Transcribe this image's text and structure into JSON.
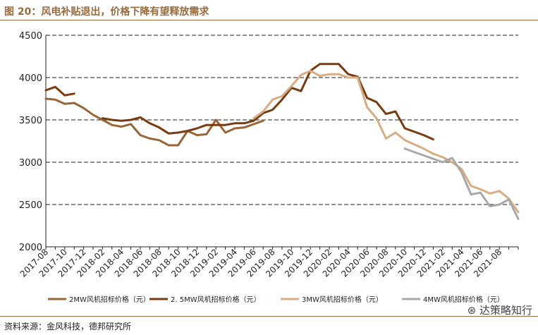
{
  "figure": {
    "title": "图 20：风电补贴退出，价格下降有望释放需求",
    "source": "资料来源：金风科技，德邦研究所",
    "watermark": "达策略知行"
  },
  "chart_data": {
    "type": "line",
    "title": "",
    "xlabel": "",
    "ylabel": "",
    "ylim": [
      2000,
      4500
    ],
    "yticks": [
      2000,
      2500,
      3000,
      3500,
      4000,
      4500
    ],
    "grid": "horizontal dashed",
    "legend_position": "bottom",
    "x_tick_labels": [
      "2017-08",
      "2017-10",
      "2017-12",
      "2018-02",
      "2018-04",
      "2018-06",
      "2018-08",
      "2018-10",
      "2018-12",
      "2019-02",
      "2019-04",
      "2019-06",
      "2019-08",
      "2019-10",
      "2019-12",
      "2020-02",
      "2020-04",
      "2020-06",
      "2020-08",
      "2020-10",
      "2020-12",
      "2021-02",
      "2021-04",
      "2021-06",
      "2021-08"
    ],
    "series": [
      {
        "name": "2MW风机招标价格（元）",
        "color": "#9a6537",
        "points": [
          [
            "2017-08",
            3750
          ],
          [
            "2017-09",
            3740
          ],
          [
            "2017-10",
            3690
          ],
          [
            "2017-11",
            3700
          ],
          [
            "2017-12",
            3640
          ],
          [
            "2018-01",
            3560
          ],
          [
            "2018-02",
            3500
          ],
          [
            "2018-03",
            3440
          ],
          [
            "2018-04",
            3420
          ],
          [
            "2018-05",
            3450
          ],
          [
            "2018-06",
            3320
          ],
          [
            "2018-07",
            3280
          ],
          [
            "2018-08",
            3260
          ],
          [
            "2018-09",
            3200
          ],
          [
            "2018-10",
            3200
          ],
          [
            "2018-11",
            3370
          ],
          [
            "2018-12",
            3320
          ],
          [
            "2019-01",
            3330
          ],
          [
            "2019-02",
            3500
          ],
          [
            "2019-03",
            3350
          ],
          [
            "2019-04",
            3400
          ],
          [
            "2019-05",
            3410
          ],
          [
            "2019-06",
            3450
          ],
          [
            "2019-07",
            3490
          ]
        ]
      },
      {
        "name": "2. 5MW风机招标价格（元）",
        "color": "#7a3b10",
        "points": [
          [
            "2017-08",
            3850
          ],
          [
            "2017-09",
            3890
          ],
          [
            "2017-10",
            3790
          ],
          [
            "2017-11",
            3810
          ],
          null,
          [
            "2018-02",
            3520
          ],
          [
            "2018-03",
            3500
          ],
          [
            "2018-04",
            3490
          ],
          [
            "2018-05",
            3500
          ],
          [
            "2018-06",
            3530
          ],
          [
            "2018-07",
            3460
          ],
          [
            "2018-08",
            3410
          ],
          [
            "2018-09",
            3340
          ],
          [
            "2018-10",
            3350
          ],
          [
            "2018-11",
            3370
          ],
          [
            "2018-12",
            3400
          ],
          [
            "2019-01",
            3440
          ],
          [
            "2019-02",
            3440
          ],
          [
            "2019-03",
            3440
          ],
          [
            "2019-04",
            3460
          ],
          [
            "2019-05",
            3460
          ],
          [
            "2019-06",
            3490
          ],
          [
            "2019-07",
            3580
          ],
          [
            "2019-08",
            3620
          ],
          [
            "2019-09",
            3740
          ],
          [
            "2019-10",
            3880
          ],
          [
            "2019-11",
            3840
          ],
          [
            "2019-12",
            4080
          ],
          [
            "2020-01",
            4160
          ],
          [
            "2020-02",
            4160
          ],
          [
            "2020-03",
            4160
          ],
          [
            "2020-04",
            4040
          ],
          [
            "2020-05",
            4010
          ],
          [
            "2020-06",
            3760
          ],
          [
            "2020-07",
            3710
          ],
          [
            "2020-08",
            3570
          ],
          [
            "2020-09",
            3600
          ],
          [
            "2020-10",
            3400
          ],
          [
            "2020-11",
            3360
          ],
          [
            "2020-12",
            3320
          ],
          [
            "2021-01",
            3270
          ]
        ]
      },
      {
        "name": "3MW风机招标价格（元）",
        "color": "#d9ad84",
        "points": [
          [
            "2019-06",
            3520
          ],
          [
            "2019-07",
            3600
          ],
          [
            "2019-08",
            3740
          ],
          [
            "2019-09",
            3780
          ],
          [
            "2019-10",
            3900
          ],
          [
            "2019-11",
            4030
          ],
          [
            "2019-12",
            4080
          ],
          [
            "2020-01",
            4020
          ],
          [
            "2020-02",
            4040
          ],
          [
            "2020-03",
            4040
          ],
          [
            "2020-04",
            4000
          ],
          [
            "2020-05",
            4000
          ],
          [
            "2020-06",
            3650
          ],
          [
            "2020-07",
            3520
          ],
          [
            "2020-08",
            3280
          ],
          [
            "2020-09",
            3350
          ],
          [
            "2020-10",
            3260
          ],
          [
            "2020-11",
            3210
          ],
          [
            "2020-12",
            3160
          ],
          [
            "2021-01",
            3100
          ],
          [
            "2021-02",
            3060
          ],
          [
            "2021-03",
            3000
          ],
          [
            "2021-04",
            2920
          ],
          [
            "2021-05",
            2720
          ],
          [
            "2021-06",
            2680
          ],
          [
            "2021-07",
            2630
          ],
          [
            "2021-08",
            2660
          ],
          [
            "2021-09",
            2570
          ],
          [
            "2021-10",
            2410
          ]
        ]
      },
      {
        "name": "4MW风机招标价格（元）",
        "color": "#a8a8a8",
        "points": [
          [
            "2020-10",
            3160
          ],
          [
            "2020-11",
            3120
          ],
          [
            "2020-12",
            3080
          ],
          [
            "2021-01",
            3040
          ],
          [
            "2021-02",
            3000
          ],
          [
            "2021-03",
            3050
          ],
          [
            "2021-04",
            2880
          ],
          [
            "2021-05",
            2620
          ],
          [
            "2021-06",
            2640
          ],
          [
            "2021-07",
            2480
          ],
          [
            "2021-08",
            2500
          ],
          [
            "2021-09",
            2560
          ],
          [
            "2021-10",
            2330
          ]
        ]
      }
    ]
  }
}
